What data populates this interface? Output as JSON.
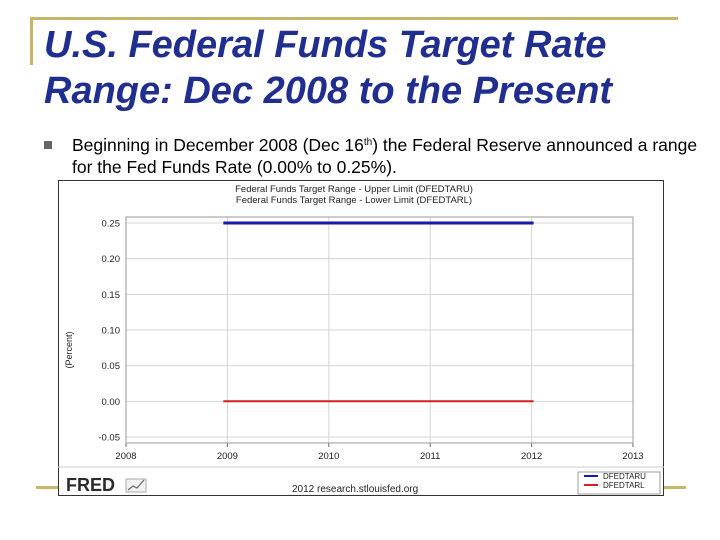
{
  "slide": {
    "title": "U.S. Federal Funds Target Rate Range: Dec 2008 to the Present",
    "bullet": {
      "before": "Beginning in December 2008 (Dec 16",
      "superscript": "th",
      "after": ") the Federal Reserve announced a range for the Fed Funds Rate (0.00% to 0.25%)."
    }
  },
  "chart_data": {
    "type": "line",
    "title_lines": [
      "Federal Funds Target Range - Upper Limit (DFEDTARU)",
      "Federal Funds Target Range - Lower Limit (DFEDTARL)"
    ],
    "ylabel": "(Percent)",
    "xlabel": "",
    "x_ticks": [
      "2008",
      "2009",
      "2010",
      "2011",
      "2012",
      "2013"
    ],
    "y_ticks": [
      "0.25",
      "0.20",
      "0.15",
      "0.10",
      "0.05",
      "0.00",
      "-0.05"
    ],
    "xlim": [
      2008,
      2013
    ],
    "ylim": [
      -0.05,
      0.25
    ],
    "grid": true,
    "legend_position": "bottom-right",
    "series": [
      {
        "name": "DFEDTARU",
        "color": "#1a1aa8",
        "x": [
          2008.96,
          2012.02
        ],
        "y": [
          0.25,
          0.25
        ]
      },
      {
        "name": "DFEDTARL",
        "color": "#d42020",
        "x": [
          2008.96,
          2012.02
        ],
        "y": [
          0.0,
          0.0
        ]
      }
    ],
    "footer": {
      "logo": "FRED",
      "source": "2012 research.stlouisfed.org"
    }
  }
}
